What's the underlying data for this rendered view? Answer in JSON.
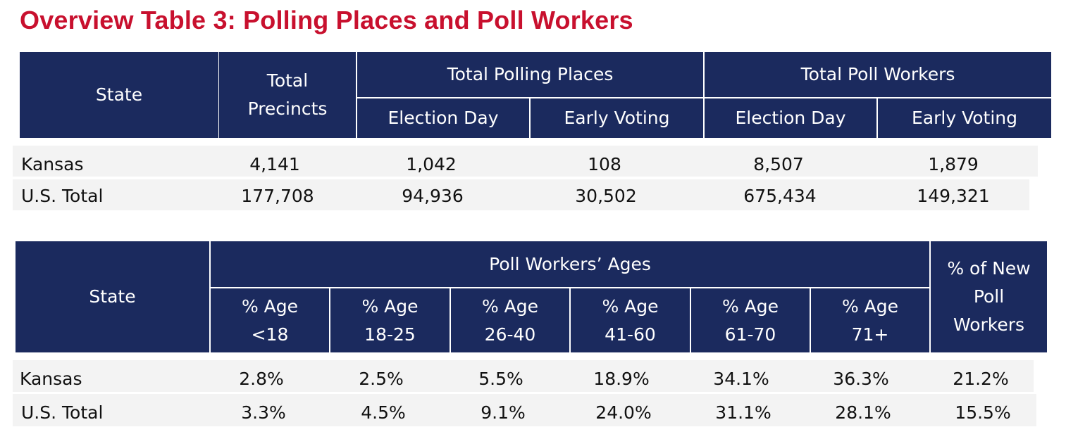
{
  "title": "Overview Table 3: Polling Places and Poll Workers",
  "colors": {
    "title": "#c8102e",
    "header_bg": "#1b2a5e",
    "header_text": "#ffffff",
    "row_stripe": "#f3f3f3"
  },
  "table1": {
    "headers": {
      "state": "State",
      "total_precincts": "Total Precincts",
      "total_polling_places": "Total Polling Places",
      "total_poll_workers": "Total Poll Workers",
      "pp_election_day": "Election Day",
      "pp_early_voting": "Early Voting",
      "pw_election_day": "Election Day",
      "pw_early_voting": "Early Voting"
    },
    "rows": [
      {
        "state": "Kansas",
        "total_precincts": "4,141",
        "pp_election_day": "1,042",
        "pp_early_voting": "108",
        "pw_election_day": "8,507",
        "pw_early_voting": "1,879"
      },
      {
        "state": "U.S. Total",
        "total_precincts": "177,708",
        "pp_election_day": "94,936",
        "pp_early_voting": "30,502",
        "pw_election_day": "675,434",
        "pw_early_voting": "149,321"
      }
    ]
  },
  "table2": {
    "headers": {
      "state": "State",
      "ages_group": "Poll Workers’ Ages",
      "age_lt18": "% Age <18",
      "age_18_25": "% Age 18-25",
      "age_26_40": "% Age 26-40",
      "age_41_60": "% Age 41-60",
      "age_61_70": "% Age 61-70",
      "age_71p": "% Age 71+",
      "new_workers": "% of New Poll Workers"
    },
    "rows": [
      {
        "state": "Kansas",
        "age_lt18": "2.8%",
        "age_18_25": "2.5%",
        "age_26_40": "5.5%",
        "age_41_60": "18.9%",
        "age_61_70": "34.1%",
        "age_71p": "36.3%",
        "new_workers": "21.2%"
      },
      {
        "state": "U.S. Total",
        "age_lt18": "3.3%",
        "age_18_25": "4.5%",
        "age_26_40": "9.1%",
        "age_41_60": "24.0%",
        "age_61_70": "31.1%",
        "age_71p": "28.1%",
        "new_workers": "15.5%"
      }
    ]
  }
}
